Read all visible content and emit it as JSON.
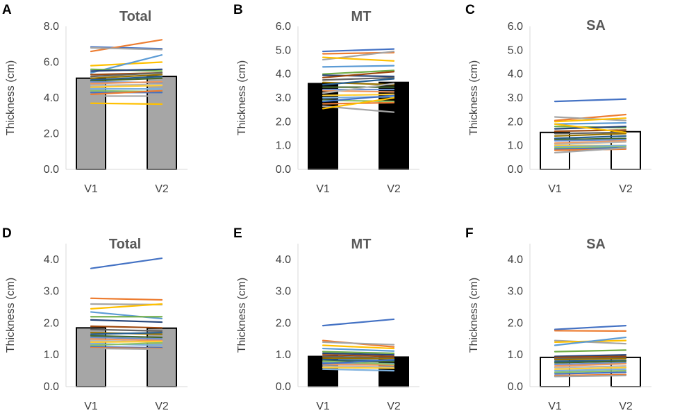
{
  "figure": {
    "panel_letters": [
      "A",
      "B",
      "C",
      "D",
      "E",
      "F"
    ]
  },
  "colors": {
    "palette": [
      "#4472C4",
      "#ED7D31",
      "#A5A5A5",
      "#FFC000",
      "#5B9BD5",
      "#70AD47",
      "#264478",
      "#9E480E",
      "#636363",
      "#997300",
      "#255E91",
      "#43682B",
      "#698ED0",
      "#F1975A",
      "#B7B7B7",
      "#FFCD33",
      "#7CAFDD",
      "#8CC168"
    ],
    "gray_bar": "#A6A6A6",
    "black_bar": "#000000",
    "white_bar": "#FFFFFF"
  },
  "chart_data": [
    {
      "letter": "A",
      "type": "bar",
      "title": "Total",
      "ylabel": "Thickness (cm)",
      "categories": [
        "V1",
        "V2"
      ],
      "ylim": [
        0,
        8
      ],
      "yticks": [
        "0.0",
        "2.0",
        "4.0",
        "6.0",
        "8.0"
      ],
      "bar_style": "gray",
      "bar_values": [
        5.1,
        5.2
      ],
      "lines": [
        [
          6.85,
          6.75
        ],
        [
          6.6,
          7.25
        ],
        [
          6.8,
          6.7
        ],
        [
          5.8,
          6.0
        ],
        [
          5.4,
          6.4
        ],
        [
          5.6,
          5.5
        ],
        [
          5.5,
          5.6
        ],
        [
          5.3,
          5.4
        ],
        [
          5.2,
          5.4
        ],
        [
          5.1,
          5.3
        ],
        [
          5.0,
          5.2
        ],
        [
          4.95,
          5.1
        ],
        [
          4.9,
          4.85
        ],
        [
          4.8,
          4.9
        ],
        [
          4.7,
          4.75
        ],
        [
          4.6,
          4.7
        ],
        [
          4.5,
          4.5
        ],
        [
          4.4,
          4.35
        ],
        [
          4.3,
          4.3
        ],
        [
          4.2,
          4.4
        ],
        [
          4.1,
          4.1
        ],
        [
          3.7,
          3.65
        ]
      ]
    },
    {
      "letter": "B",
      "type": "bar",
      "title": "MT",
      "ylabel": "Thickness (cm)",
      "categories": [
        "V1",
        "V2"
      ],
      "ylim": [
        0,
        6
      ],
      "yticks": [
        "0.0",
        "1.0",
        "2.0",
        "3.0",
        "4.0",
        "5.0",
        "6.0"
      ],
      "bar_style": "black",
      "bar_values": [
        3.6,
        3.65
      ],
      "lines": [
        [
          4.95,
          5.05
        ],
        [
          4.85,
          4.9
        ],
        [
          4.6,
          4.95
        ],
        [
          4.7,
          4.55
        ],
        [
          4.3,
          4.35
        ],
        [
          4.0,
          4.15
        ],
        [
          3.95,
          3.9
        ],
        [
          3.85,
          4.1
        ],
        [
          3.75,
          3.85
        ],
        [
          3.65,
          3.55
        ],
        [
          3.55,
          3.8
        ],
        [
          3.45,
          3.45
        ],
        [
          3.35,
          3.35
        ],
        [
          3.3,
          3.25
        ],
        [
          3.2,
          3.6
        ],
        [
          3.1,
          3.15
        ],
        [
          3.0,
          3.05
        ],
        [
          2.9,
          2.85
        ],
        [
          2.85,
          3.1
        ],
        [
          2.75,
          2.8
        ],
        [
          2.65,
          2.4
        ],
        [
          2.55,
          3.0
        ]
      ]
    },
    {
      "letter": "C",
      "type": "bar",
      "title": "SA",
      "ylabel": "Thickness (cm)",
      "categories": [
        "V1",
        "V2"
      ],
      "ylim": [
        0,
        6
      ],
      "yticks": [
        "0.0",
        "1.0",
        "2.0",
        "3.0",
        "4.0",
        "5.0",
        "6.0"
      ],
      "bar_style": "white",
      "bar_values": [
        1.55,
        1.58
      ],
      "lines": [
        [
          2.85,
          2.95
        ],
        [
          2.05,
          2.3
        ],
        [
          2.2,
          2.05
        ],
        [
          2.0,
          2.15
        ],
        [
          1.9,
          1.95
        ],
        [
          1.8,
          1.75
        ],
        [
          1.7,
          1.8
        ],
        [
          1.6,
          1.65
        ],
        [
          1.5,
          1.55
        ],
        [
          1.4,
          1.5
        ],
        [
          1.3,
          1.4
        ],
        [
          1.25,
          1.3
        ],
        [
          1.2,
          1.25
        ],
        [
          1.1,
          1.2
        ],
        [
          1.05,
          1.15
        ],
        [
          1.0,
          1.0
        ],
        [
          0.95,
          1.0
        ],
        [
          0.9,
          0.95
        ],
        [
          0.85,
          0.9
        ],
        [
          0.8,
          0.85
        ],
        [
          0.7,
          0.9
        ],
        [
          1.9,
          1.55
        ]
      ]
    },
    {
      "letter": "D",
      "type": "bar",
      "title": "Total",
      "ylabel": "Thickness (cm)",
      "categories": [
        "V1",
        "V2"
      ],
      "ylim": [
        0,
        4.5
      ],
      "yticks": [
        "0.0",
        "1.0",
        "2.0",
        "3.0",
        "4.0"
      ],
      "bar_style": "gray",
      "bar_values": [
        1.85,
        1.84
      ],
      "lines": [
        [
          3.72,
          4.04
        ],
        [
          2.78,
          2.73
        ],
        [
          2.6,
          2.58
        ],
        [
          2.45,
          2.6
        ],
        [
          2.35,
          2.14
        ],
        [
          2.2,
          2.2
        ],
        [
          2.1,
          2.03
        ],
        [
          1.9,
          1.85
        ],
        [
          1.8,
          1.75
        ],
        [
          1.7,
          1.65
        ],
        [
          1.65,
          1.7
        ],
        [
          1.6,
          1.55
        ],
        [
          1.55,
          1.5
        ],
        [
          1.5,
          1.45
        ],
        [
          1.45,
          1.4
        ],
        [
          1.4,
          1.42
        ],
        [
          1.35,
          1.3
        ],
        [
          1.3,
          1.38
        ],
        [
          1.25,
          1.22
        ],
        [
          1.22,
          1.2
        ],
        [
          1.2,
          1.18
        ]
      ]
    },
    {
      "letter": "E",
      "type": "bar",
      "title": "MT",
      "ylabel": "Thickness (cm)",
      "categories": [
        "V1",
        "V2"
      ],
      "ylim": [
        0,
        4.5
      ],
      "yticks": [
        "0.0",
        "1.0",
        "2.0",
        "3.0",
        "4.0"
      ],
      "bar_style": "black",
      "bar_values": [
        0.95,
        0.93
      ],
      "lines": [
        [
          1.92,
          2.12
        ],
        [
          1.45,
          1.25
        ],
        [
          1.4,
          1.32
        ],
        [
          1.3,
          1.2
        ],
        [
          1.2,
          1.12
        ],
        [
          1.1,
          1.05
        ],
        [
          1.05,
          1.0
        ],
        [
          1.0,
          0.95
        ],
        [
          0.95,
          0.9
        ],
        [
          0.9,
          0.88
        ],
        [
          0.85,
          0.82
        ],
        [
          0.8,
          0.78
        ],
        [
          0.75,
          0.72
        ],
        [
          0.7,
          0.68
        ],
        [
          0.65,
          0.62
        ],
        [
          0.6,
          0.58
        ],
        [
          0.55,
          0.5
        ],
        [
          0.8,
          0.7
        ],
        [
          0.72,
          0.85
        ]
      ]
    },
    {
      "letter": "F",
      "type": "bar",
      "title": "SA",
      "ylabel": "Thickness (cm)",
      "categories": [
        "V1",
        "V2"
      ],
      "ylim": [
        0,
        4.5
      ],
      "yticks": [
        "0.0",
        "1.0",
        "2.0",
        "3.0",
        "4.0"
      ],
      "bar_style": "white",
      "bar_values": [
        0.92,
        0.92
      ],
      "lines": [
        [
          1.8,
          1.92
        ],
        [
          1.76,
          1.75
        ],
        [
          1.45,
          1.35
        ],
        [
          1.4,
          1.45
        ],
        [
          1.3,
          1.55
        ],
        [
          1.1,
          1.15
        ],
        [
          0.95,
          1.0
        ],
        [
          0.92,
          0.95
        ],
        [
          0.88,
          0.9
        ],
        [
          0.85,
          0.88
        ],
        [
          0.8,
          0.82
        ],
        [
          0.75,
          0.8
        ],
        [
          0.7,
          0.75
        ],
        [
          0.65,
          0.72
        ],
        [
          0.6,
          0.65
        ],
        [
          0.55,
          0.6
        ],
        [
          0.5,
          0.55
        ],
        [
          0.45,
          0.5
        ],
        [
          0.4,
          0.45
        ],
        [
          0.35,
          0.38
        ],
        [
          0.32,
          0.35
        ]
      ]
    }
  ]
}
